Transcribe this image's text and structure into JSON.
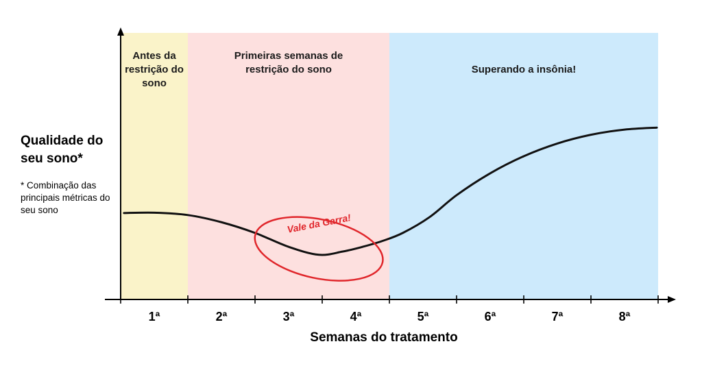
{
  "chart_data": {
    "type": "line",
    "xlabel": "Semanas do tratamento",
    "ylabel": "Qualidade do seu sono*",
    "ylabel_note": "* Combinação das principais métricas do seu sono",
    "categories": [
      "1ª",
      "2ª",
      "3ª",
      "4ª",
      "5ª",
      "6ª",
      "7ª",
      "8ª"
    ],
    "zones": [
      {
        "label": "Antes da restrição do sono",
        "from": 0,
        "to": 1,
        "color": "#faf3c9"
      },
      {
        "label": "Primeiras semanas de restrição do sono",
        "from": 1,
        "to": 4,
        "color": "#fde0df"
      },
      {
        "label": "Superando a insônia!",
        "from": 4,
        "to": 8,
        "color": "#cdeafc"
      }
    ],
    "series": [
      {
        "x": [
          0.05,
          0.5,
          1.0,
          1.5,
          2.0,
          2.5,
          2.95,
          3.3,
          3.6,
          3.9,
          4.2,
          4.6,
          5.0,
          5.5,
          6.0,
          6.5,
          7.0,
          7.5,
          7.98
        ],
        "y": [
          1.45,
          1.46,
          1.4,
          1.22,
          0.95,
          0.6,
          0.4,
          0.48,
          0.6,
          0.75,
          0.95,
          1.35,
          1.9,
          2.45,
          2.88,
          3.2,
          3.42,
          3.55,
          3.6
        ],
        "color": "#111111"
      }
    ],
    "annotations": [
      {
        "text": "Vale da Garra!",
        "x": 2.95,
        "y": 0.55,
        "color": "#e0262b"
      }
    ],
    "grid": false
  }
}
